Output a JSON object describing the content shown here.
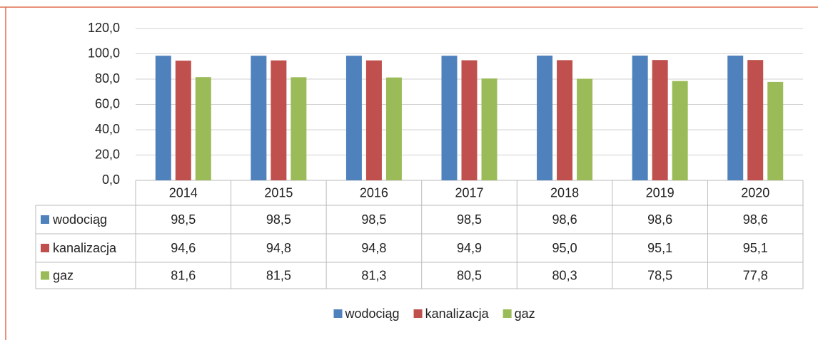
{
  "chart_data": {
    "type": "bar",
    "categories": [
      "2014",
      "2015",
      "2016",
      "2017",
      "2018",
      "2019",
      "2020"
    ],
    "series": [
      {
        "name": "wodociąg",
        "color": "#4f81bd",
        "values": [
          98.5,
          98.5,
          98.5,
          98.5,
          98.6,
          98.6,
          98.6
        ],
        "value_labels": [
          "98,5",
          "98,5",
          "98,5",
          "98,5",
          "98,6",
          "98,6",
          "98,6"
        ]
      },
      {
        "name": "kanalizacja",
        "color": "#c0504d",
        "values": [
          94.6,
          94.8,
          94.8,
          94.9,
          95.0,
          95.1,
          95.1
        ],
        "value_labels": [
          "94,6",
          "94,8",
          "94,8",
          "94,9",
          "95,0",
          "95,1",
          "95,1"
        ]
      },
      {
        "name": "gaz",
        "color": "#9bbb59",
        "values": [
          81.6,
          81.5,
          81.3,
          80.5,
          80.3,
          78.5,
          77.8
        ],
        "value_labels": [
          "81,6",
          "81,5",
          "81,3",
          "80,5",
          "80,3",
          "78,5",
          "77,8"
        ]
      }
    ],
    "ylim": [
      0,
      120
    ],
    "yticks": [
      {
        "value": 0,
        "label": "0,0"
      },
      {
        "value": 20,
        "label": "20,0"
      },
      {
        "value": 40,
        "label": "40,0"
      },
      {
        "value": 60,
        "label": "60,0"
      },
      {
        "value": 80,
        "label": "80,0"
      },
      {
        "value": 100,
        "label": "100,0"
      },
      {
        "value": 120,
        "label": "120,0"
      }
    ],
    "grid": true,
    "legend": "bottom"
  }
}
